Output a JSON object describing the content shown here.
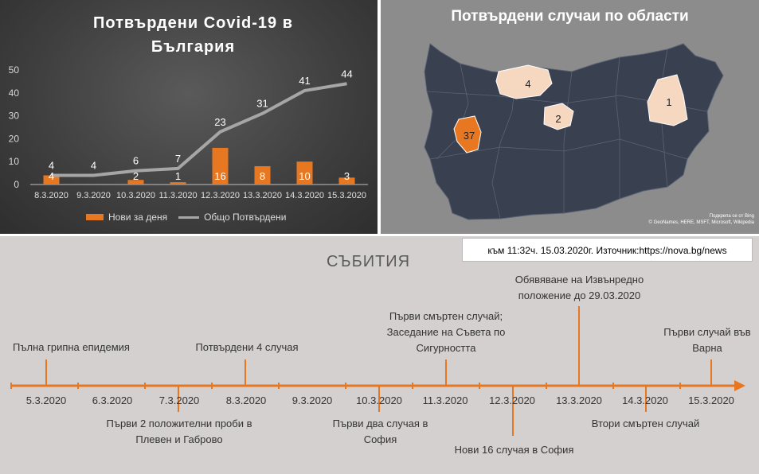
{
  "chart_data": [
    {
      "type": "bar",
      "title": "Потвърдени Covid-19 в България",
      "categories": [
        "8.3.2020",
        "9.3.2020",
        "10.3.2020",
        "11.3.2020",
        "12.3.2020",
        "13.3.2020",
        "14.3.2020",
        "15.3.2020"
      ],
      "series": [
        {
          "name": "Нови за деня",
          "kind": "bar",
          "color": "#e87722",
          "values": [
            4,
            0,
            2,
            1,
            16,
            8,
            10,
            3
          ],
          "labels": [
            "4",
            "",
            "2",
            "1",
            "16",
            "8",
            "10",
            "3"
          ]
        },
        {
          "name": "Общо Потвърдени",
          "kind": "line",
          "color": "#a6a6a6",
          "values": [
            4,
            4,
            6,
            7,
            23,
            31,
            41,
            44
          ]
        }
      ],
      "ylim": [
        0,
        50
      ],
      "yticks": [
        "0",
        "10",
        "20",
        "30",
        "40",
        "50"
      ],
      "legend": "bottom",
      "grid": false
    }
  ],
  "map": {
    "title": "Потвърдени случаи по области",
    "regions": [
      {
        "name": "Плевен",
        "value": "4",
        "color": "#f6d7c0"
      },
      {
        "name": "Габрово",
        "value": "2",
        "color": "#f6d7c0"
      },
      {
        "name": "Варна",
        "value": "1",
        "color": "#f6d7c0"
      },
      {
        "name": "София",
        "value": "37",
        "color": "#e87722"
      }
    ],
    "credit_line1": "Подкрепа се от Bing",
    "credit_line2": "© GeoNames, HERE, MSFT, Microsoft, Wikipedia",
    "base_color": "#39404f"
  },
  "source_text": "към 11:32ч. 15.03.2020г.  Източник:https://nova.bg/news",
  "timeline": {
    "title": "СЪБИТИЯ",
    "dates": [
      "5.3.2020",
      "6.3.2020",
      "7.3.2020",
      "8.3.2020",
      "9.3.2020",
      "10.3.2020",
      "11.3.2020",
      "12.3.2020",
      "13.3.2020",
      "14.3.2020",
      "15.3.2020"
    ],
    "events": [
      {
        "text": "Пълна грипна епидемия"
      },
      {
        "text": "Първи 2 положителни проби в Плевен и Габрово"
      },
      {
        "text": "Потвърдени 4 случая"
      },
      {
        "text": "Първи два случая в София"
      },
      {
        "text": "Първи смъртен случай; Заседание на Съвета по Сигурността"
      },
      {
        "text": "Нови 16 случая в София"
      },
      {
        "text": "Обявяване на Извънредно положение до 29.03.2020"
      },
      {
        "text": "Втори смъртен случай"
      },
      {
        "text": "Първи случай във Варна"
      }
    ],
    "accent": "#e87722"
  }
}
